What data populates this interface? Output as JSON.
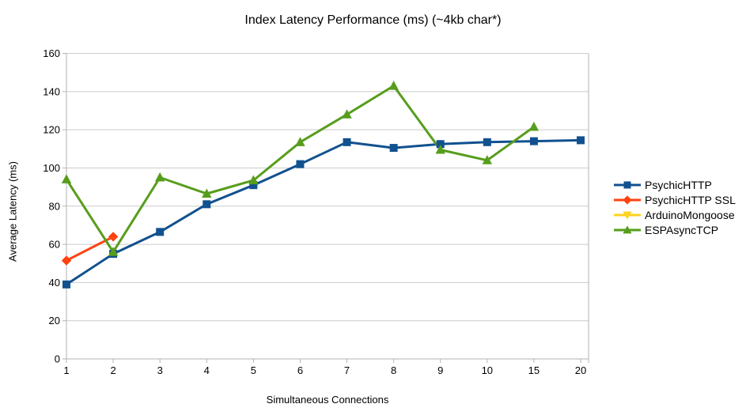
{
  "chart_data": {
    "type": "line",
    "title": "Index Latency Performance (ms) (~4kb char*)",
    "xlabel": "Simultaneous Connections",
    "ylabel": "Average Latency (ms)",
    "categories": [
      "1",
      "2",
      "3",
      "4",
      "5",
      "6",
      "7",
      "8",
      "9",
      "10",
      "15",
      "20"
    ],
    "ylim": [
      0,
      160
    ],
    "yticks": [
      0,
      20,
      40,
      60,
      80,
      100,
      120,
      140,
      160
    ],
    "grid": "horizontal-only",
    "legend_position": "right-middle",
    "background_color": "#ffffff",
    "grid_color": "#cccccc",
    "axis_color": "#b3b3b3",
    "text_color": "#000000",
    "series": [
      {
        "name": "PsychicHTTP",
        "color": "#11518f",
        "marker": "square",
        "values": [
          39,
          55,
          66.5,
          81,
          91,
          102,
          113.5,
          110.5,
          112.5,
          113.5,
          114,
          114.5
        ]
      },
      {
        "name": "PsychicHTTP SSL",
        "color": "#ff420e",
        "marker": "diamond",
        "values": [
          51.5,
          64,
          null,
          null,
          null,
          null,
          null,
          null,
          null,
          null,
          null,
          null
        ]
      },
      {
        "name": "ArduinoMongoose",
        "color": "#ffd320",
        "marker": "triangle-down",
        "values": [
          null,
          null,
          null,
          null,
          null,
          null,
          null,
          null,
          null,
          null,
          null,
          null
        ]
      },
      {
        "name": "ESPAsyncTCP",
        "color": "#579d1c",
        "marker": "triangle-up",
        "values": [
          94,
          56,
          95,
          86.5,
          93.5,
          113.5,
          128,
          143,
          109.5,
          104,
          121.5,
          null
        ]
      }
    ]
  }
}
